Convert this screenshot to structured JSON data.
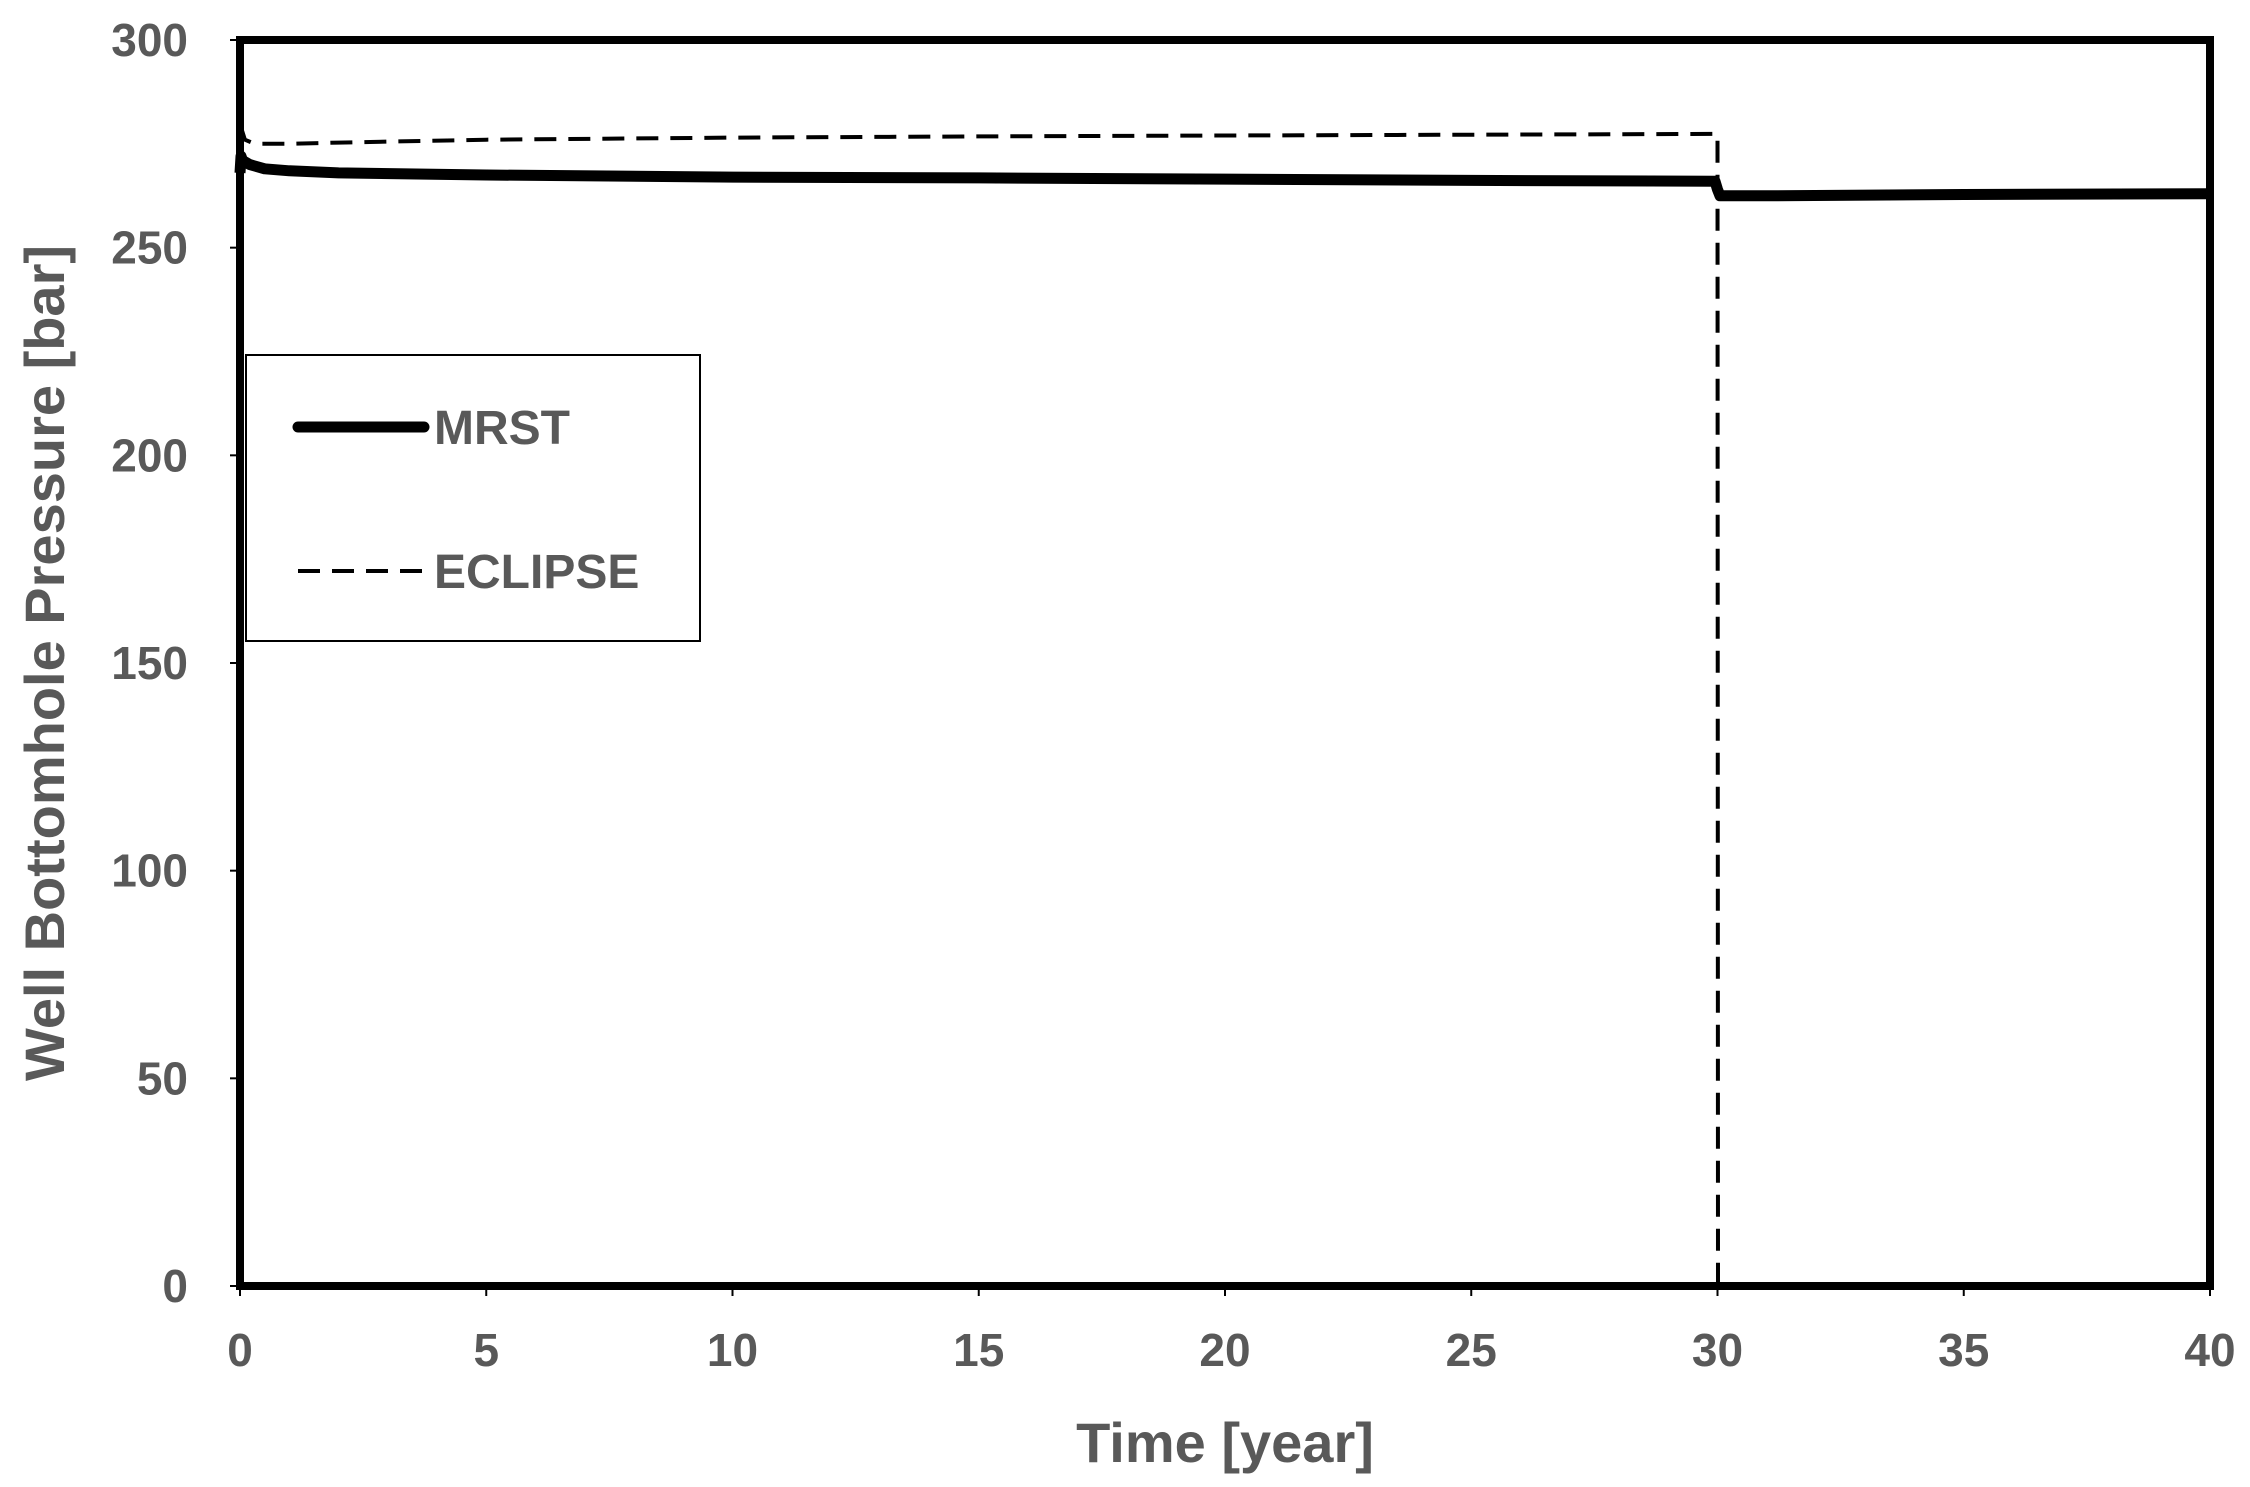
{
  "chart_data": {
    "type": "line",
    "xlabel": "Time [year]",
    "ylabel": "Well Bottomhole Pressure [bar]",
    "xlim": [
      0,
      40
    ],
    "ylim": [
      0,
      300
    ],
    "xticks": [
      "0",
      "5",
      "10",
      "15",
      "20",
      "25",
      "30",
      "35",
      "40"
    ],
    "yticks": [
      "0",
      "50",
      "100",
      "150",
      "200",
      "250",
      "300"
    ],
    "grid": false,
    "legend_position": "left",
    "series": [
      {
        "name": "MRST",
        "style": "solid",
        "color": "#000000",
        "x": [
          0,
          0.02,
          0.05,
          0.2,
          0.5,
          1,
          2,
          5,
          10,
          15,
          20,
          25,
          29.95,
          30,
          30.05,
          31,
          35,
          40
        ],
        "y": [
          268,
          272,
          271,
          270,
          269,
          268.5,
          268,
          267.5,
          267,
          266.8,
          266.5,
          266.2,
          266,
          264,
          262.5,
          262.5,
          262.8,
          263
        ]
      },
      {
        "name": "ECLIPSE",
        "style": "dashed",
        "color": "#000000",
        "x": [
          0,
          0.02,
          0.1,
          0.3,
          1,
          2,
          5,
          10,
          15,
          20,
          25,
          29.99,
          30,
          30.01
        ],
        "y": [
          262,
          279,
          276,
          275,
          275,
          275.3,
          276,
          276.5,
          276.8,
          277,
          277.2,
          277.4,
          277.4,
          0
        ]
      }
    ]
  }
}
